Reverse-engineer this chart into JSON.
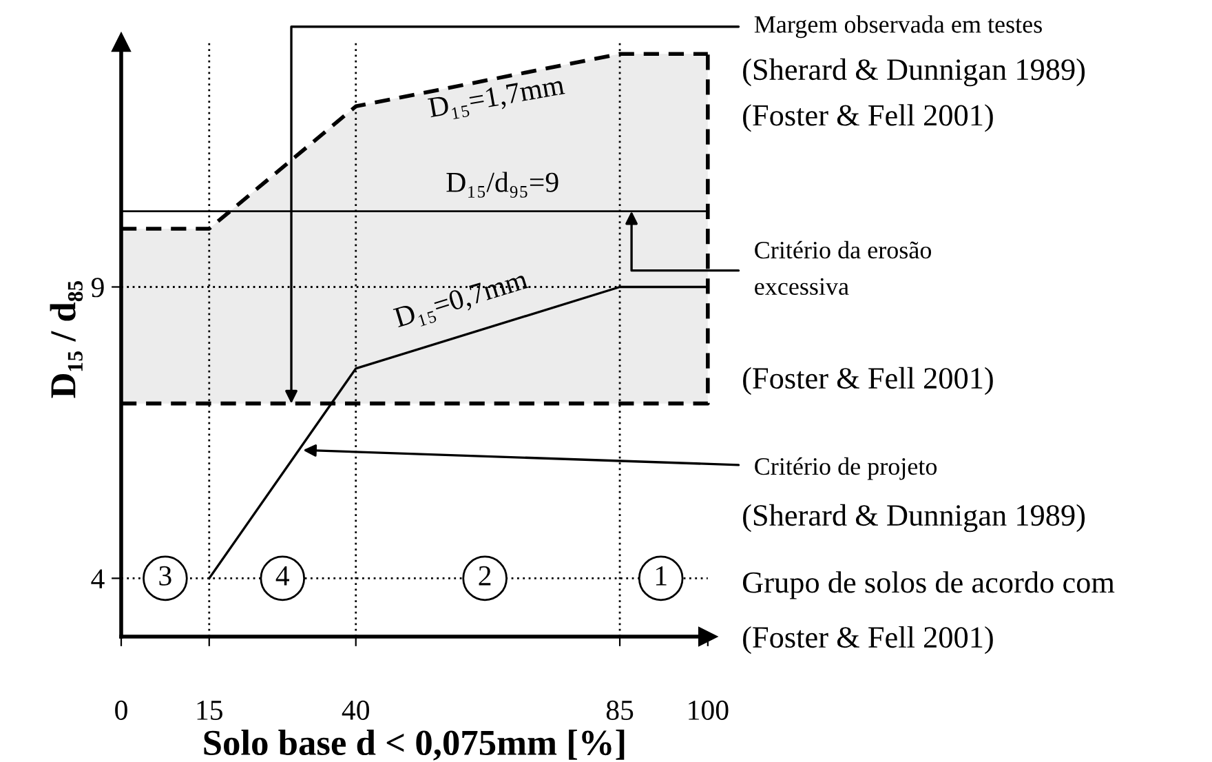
{
  "chart_data": {
    "type": "line",
    "xlabel": "Solo base d < 0,075mm [%]",
    "ylabel": "D₁₅ / d₈₅",
    "xlim": [
      0,
      100
    ],
    "ylim": [
      3,
      13.2
    ],
    "xticks": [
      0,
      15,
      40,
      85,
      100
    ],
    "yticks": [
      4,
      9
    ],
    "grid": false,
    "marker": "none",
    "series": [
      {
        "color": "#000000",
        "line_style": "solid",
        "x": [
          15,
          40,
          85,
          100
        ],
        "values": [
          4,
          7.6,
          9,
          9
        ]
      },
      {
        "color": "#000000",
        "line_style": "dashed",
        "x": [
          0,
          15,
          40,
          85,
          100
        ],
        "values": [
          10,
          10,
          12.1,
          13,
          13
        ]
      },
      {
        "color": "#000000",
        "line_style": "dashed",
        "x": [
          0,
          100,
          100
        ],
        "values": [
          7,
          7,
          13
        ]
      }
    ],
    "ref_lines": [
      {
        "axis": "y",
        "value": 10.3,
        "color": "#000000",
        "line_style": "solid"
      },
      {
        "axis": "y",
        "value": 9,
        "color": "#000000",
        "line_style": "dotted"
      },
      {
        "axis": "y",
        "value": 4,
        "color": "#000000",
        "line_style": "dotted"
      },
      {
        "axis": "x",
        "value": 15,
        "color": "#000000",
        "line_style": "dotted"
      },
      {
        "axis": "x",
        "value": 40,
        "color": "#000000",
        "line_style": "dotted"
      },
      {
        "axis": "x",
        "value": 85,
        "color": "#000000",
        "line_style": "dotted"
      }
    ],
    "annotations": [
      "D₁₅=1,7mm",
      "D₁₅/d₉₅=9",
      "D₁₅=0,7mm",
      {
        "text": "3",
        "x": 7.5,
        "y": 4
      },
      {
        "text": "4",
        "x": 27.5,
        "y": 4
      },
      {
        "text": "2",
        "x": 62,
        "y": 4
      },
      {
        "text": "1",
        "x": 92,
        "y": 4
      },
      {
        "text": "Margem observada em testes",
        "x": 29,
        "y": 7.0
      },
      "(Sherard & Dunnigan 1989)",
      "(Foster & Fell 2001)",
      {
        "text": "Critério da erosão\nexcessiva",
        "x": 87,
        "y": 10.3
      },
      "(Foster & Fell 2001)",
      {
        "text": "Critério de projeto",
        "x": 31,
        "y": 6.2
      },
      "(Sherard & Dunnigan 1989)",
      "Grupo de solos de acordo com",
      "(Foster & Fell 2001)"
    ]
  }
}
